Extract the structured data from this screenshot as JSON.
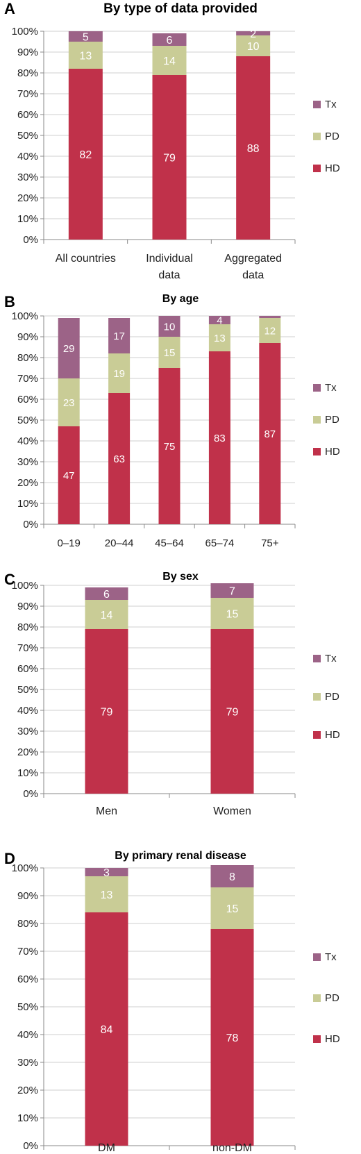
{
  "chart_data": [
    {
      "panel": "A",
      "title": "By type of data provided",
      "type": "bar",
      "stacked": true,
      "ylim": [
        0,
        100
      ],
      "yticks": [
        "0%",
        "10%",
        "20%",
        "30%",
        "40%",
        "50%",
        "60%",
        "70%",
        "80%",
        "90%",
        "100%"
      ],
      "categories": [
        "All countries",
        "Individual data",
        "Aggregated data"
      ],
      "category_lines": [
        [
          "All countries"
        ],
        [
          "Individual",
          "data"
        ],
        [
          "Aggregated",
          "data"
        ]
      ],
      "series": [
        {
          "name": "HD",
          "values": [
            82,
            79,
            88
          ],
          "color": "#C0314A"
        },
        {
          "name": "PD",
          "values": [
            13,
            14,
            10
          ],
          "color": "#C9CC96"
        },
        {
          "name": "Tx",
          "values": [
            5,
            6,
            2
          ],
          "color": "#9C6387"
        }
      ],
      "legend": [
        "Tx",
        "PD",
        "HD"
      ],
      "legend_position": "right"
    },
    {
      "panel": "B",
      "title": "By age",
      "type": "bar",
      "stacked": true,
      "ylim": [
        0,
        100
      ],
      "yticks": [
        "0%",
        "10%",
        "20%",
        "30%",
        "40%",
        "50%",
        "60%",
        "70%",
        "80%",
        "90%",
        "100%"
      ],
      "categories": [
        "0–19",
        "20–44",
        "45–64",
        "65–74",
        "75+"
      ],
      "category_lines": [
        [
          "0–19"
        ],
        [
          "20–44"
        ],
        [
          "45–64"
        ],
        [
          "65–74"
        ],
        [
          "75+"
        ]
      ],
      "series": [
        {
          "name": "HD",
          "values": [
            47,
            63,
            75,
            83,
            87
          ],
          "color": "#C0314A"
        },
        {
          "name": "PD",
          "values": [
            23,
            19,
            15,
            13,
            12
          ],
          "color": "#C9CC96"
        },
        {
          "name": "Tx",
          "values": [
            29,
            17,
            10,
            4,
            1
          ],
          "color": "#9C6387"
        }
      ],
      "value_labels": {
        "Tx": [
          "29",
          "17",
          "10",
          "4",
          ""
        ]
      },
      "legend": [
        "Tx",
        "PD",
        "HD"
      ],
      "legend_position": "right"
    },
    {
      "panel": "C",
      "title": "By sex",
      "type": "bar",
      "stacked": true,
      "ylim": [
        0,
        100
      ],
      "yticks": [
        "0%",
        "10%",
        "20%",
        "30%",
        "40%",
        "50%",
        "60%",
        "70%",
        "80%",
        "90%",
        "100%"
      ],
      "categories": [
        "Men",
        "Women"
      ],
      "category_lines": [
        [
          "Men"
        ],
        [
          "Women"
        ]
      ],
      "series": [
        {
          "name": "HD",
          "values": [
            79,
            79
          ],
          "color": "#C0314A"
        },
        {
          "name": "PD",
          "values": [
            14,
            15
          ],
          "color": "#C9CC96"
        },
        {
          "name": "Tx",
          "values": [
            6,
            7
          ],
          "color": "#9C6387"
        }
      ],
      "legend": [
        "Tx",
        "PD",
        "HD"
      ],
      "legend_position": "right"
    },
    {
      "panel": "D",
      "title": "By primary renal disease",
      "type": "bar",
      "stacked": true,
      "ylim": [
        0,
        100
      ],
      "yticks": [
        "0%",
        "10%",
        "20%",
        "30%",
        "40%",
        "50%",
        "60%",
        "70%",
        "80%",
        "90%",
        "100%"
      ],
      "categories": [
        "DM",
        "non-DM"
      ],
      "category_lines": [
        [
          "DM"
        ],
        [
          "non-DM"
        ]
      ],
      "series": [
        {
          "name": "HD",
          "values": [
            84,
            78
          ],
          "color": "#C0314A"
        },
        {
          "name": "PD",
          "values": [
            13,
            15
          ],
          "color": "#C9CC96"
        },
        {
          "name": "Tx",
          "values": [
            3,
            8
          ],
          "color": "#9C6387"
        }
      ],
      "legend": [
        "Tx",
        "PD",
        "HD"
      ],
      "legend_position": "right"
    }
  ]
}
